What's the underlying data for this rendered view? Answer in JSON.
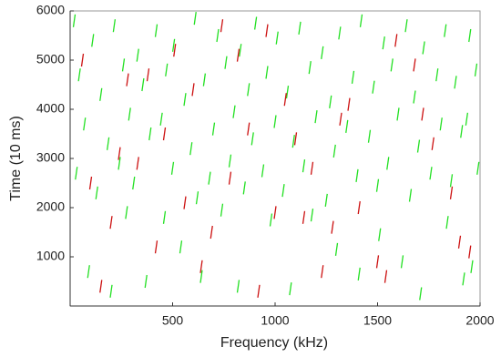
{
  "chart_data": {
    "type": "scatter",
    "x_label": "Frequency (kHz)",
    "y_label": "Time (10 ms)",
    "xlim": [
      0,
      2000
    ],
    "xticks": [
      500,
      1000,
      1500,
      2000
    ],
    "ylim": [
      0,
      6000
    ],
    "yticks": [
      1000,
      2000,
      3000,
      4000,
      5000,
      6000
    ],
    "series": [
      {
        "color": "#22e022",
        "x": [
          20,
          110,
          215,
          330,
          420,
          505,
          610,
          720,
          830,
          905,
          1010,
          1120,
          1230,
          1315,
          1420,
          1530,
          1640,
          1725,
          1830,
          1950,
          45,
          150,
          260,
          355,
          470,
          560,
          655,
          760,
          870,
          960,
          1060,
          1170,
          1270,
          1380,
          1480,
          1570,
          1680,
          1790,
          1880,
          1980,
          70,
          185,
          290,
          390,
          445,
          590,
          700,
          800,
          890,
          1000,
          1090,
          1200,
          1290,
          1350,
          1460,
          1600,
          1700,
          1810,
          1910,
          1935,
          30,
          130,
          240,
          310,
          500,
          620,
          680,
          780,
          850,
          940,
          1040,
          1140,
          1250,
          1400,
          1500,
          1550,
          1660,
          1760,
          1860,
          1990,
          90,
          200,
          275,
          370,
          460,
          540,
          640,
          740,
          820,
          980,
          1075,
          1180,
          1300,
          1410,
          1510,
          1620,
          1710,
          1840,
          1920,
          1960
        ],
        "values": [
          5800,
          5400,
          5700,
          5100,
          5600,
          5300,
          5850,
          5500,
          5200,
          5750,
          5450,
          5650,
          5150,
          5550,
          5800,
          5350,
          5700,
          5250,
          5600,
          5500,
          4700,
          4300,
          4900,
          4500,
          4800,
          4200,
          4600,
          4950,
          4400,
          4750,
          4350,
          4850,
          4150,
          4650,
          4450,
          4900,
          4250,
          4700,
          4550,
          4800,
          3700,
          3300,
          3900,
          3500,
          3800,
          3200,
          3600,
          3950,
          3400,
          3750,
          3350,
          3850,
          3150,
          3650,
          3450,
          3900,
          3250,
          3700,
          3550,
          3800,
          2700,
          2300,
          2900,
          2500,
          2800,
          2200,
          2600,
          2950,
          2400,
          2750,
          2350,
          2850,
          2150,
          2650,
          2450,
          2900,
          2250,
          2700,
          2550,
          2800,
          700,
          300,
          1900,
          500,
          1800,
          1200,
          600,
          1950,
          400,
          1750,
          350,
          1850,
          1150,
          650,
          1450,
          900,
          250,
          1700,
          550,
          800
        ]
      },
      {
        "color": "#cc1111",
        "x": [
          60,
          240,
          420,
          600,
          780,
          960,
          1140,
          1320,
          1500,
          1680,
          1860,
          150,
          330,
          510,
          690,
          870,
          1050,
          1230,
          1410,
          1590,
          1770,
          1950,
          100,
          280,
          460,
          640,
          820,
          1000,
          1180,
          1360,
          1540,
          1720,
          1900,
          200,
          380,
          560,
          740,
          920,
          1100,
          1280
        ],
        "values": [
          5000,
          3100,
          1200,
          4400,
          2600,
          5600,
          1800,
          3800,
          900,
          4900,
          2300,
          400,
          2900,
          5200,
          1500,
          3600,
          4200,
          700,
          2000,
          5400,
          3300,
          1100,
          2500,
          4600,
          3500,
          800,
          5100,
          1900,
          2800,
          4100,
          600,
          3900,
          1300,
          1700,
          4700,
          2100,
          5700,
          300,
          3400,
          1600
        ]
      }
    ]
  }
}
